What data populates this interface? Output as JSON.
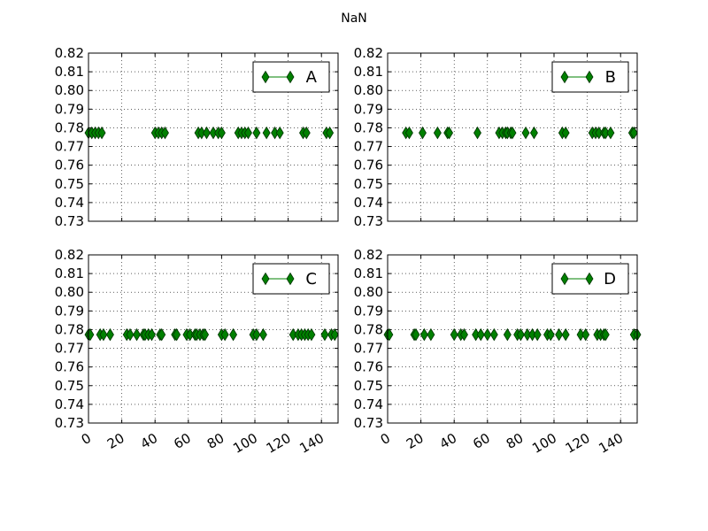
{
  "figure": {
    "title": "NaN"
  },
  "colors": {
    "marker_fill": "#008000",
    "marker_edge": "#003300",
    "line": "#008000",
    "axes": "#000000",
    "grid": "#000000",
    "background": "#ffffff"
  },
  "chart_data": [
    {
      "type": "scatter",
      "panel": "top-left",
      "legend": {
        "label": "A",
        "position": "upper-right"
      },
      "xlim": [
        0,
        150
      ],
      "ylim": [
        0.73,
        0.82
      ],
      "xticks": [
        0,
        20,
        40,
        60,
        80,
        100,
        120,
        140
      ],
      "xticks_visible": false,
      "yticks": [
        "0.73",
        "0.74",
        "0.75",
        "0.76",
        "0.77",
        "0.78",
        "0.79",
        "0.80",
        "0.81",
        "0.82"
      ],
      "grid": true,
      "marker": "diamond",
      "series": [
        {
          "x": [
            0,
            2,
            4,
            6,
            8,
            40,
            42,
            44,
            46,
            66,
            68,
            71,
            75,
            78,
            80,
            90,
            92,
            94,
            96,
            101,
            107,
            112,
            115,
            129,
            131,
            143,
            145
          ],
          "y_constant": 0.7773
        }
      ]
    },
    {
      "type": "scatter",
      "panel": "top-right",
      "legend": {
        "label": "B",
        "position": "upper-right"
      },
      "xlim": [
        0,
        150
      ],
      "ylim": [
        0.73,
        0.82
      ],
      "xticks": [
        0,
        20,
        40,
        60,
        80,
        100,
        120,
        140
      ],
      "xticks_visible": false,
      "yticks": [
        "0.73",
        "0.74",
        "0.75",
        "0.76",
        "0.77",
        "0.78",
        "0.79",
        "0.80",
        "0.81",
        "0.82"
      ],
      "grid": true,
      "marker": "diamond",
      "series": [
        {
          "x": [
            11,
            13,
            21,
            30,
            36,
            37,
            54,
            67,
            69,
            71,
            72,
            74,
            75,
            83,
            88,
            105,
            107,
            123,
            125,
            127,
            130,
            131,
            134,
            147,
            148
          ],
          "y_constant": 0.7773
        }
      ]
    },
    {
      "type": "scatter",
      "panel": "bottom-left",
      "legend": {
        "label": "C",
        "position": "upper-right"
      },
      "xlim": [
        0,
        150
      ],
      "ylim": [
        0.73,
        0.82
      ],
      "xticks": [
        "0",
        "20",
        "40",
        "60",
        "80",
        "100",
        "120",
        "140"
      ],
      "xticks_visible": true,
      "yticks": [
        "0.73",
        "0.74",
        "0.75",
        "0.76",
        "0.77",
        "0.78",
        "0.79",
        "0.80",
        "0.81",
        "0.82"
      ],
      "grid": true,
      "marker": "diamond",
      "series": [
        {
          "x": [
            0,
            1,
            7,
            9,
            13,
            23,
            25,
            29,
            33,
            34,
            36,
            38,
            43,
            44,
            52,
            53,
            59,
            61,
            64,
            65,
            67,
            69,
            70,
            80,
            82,
            87,
            99,
            101,
            105,
            123,
            126,
            128,
            130,
            132,
            134,
            142,
            146,
            148
          ],
          "y_constant": 0.7773
        }
      ]
    },
    {
      "type": "scatter",
      "panel": "bottom-right",
      "legend": {
        "label": "D",
        "position": "upper-right"
      },
      "xlim": [
        0,
        150
      ],
      "ylim": [
        0.73,
        0.82
      ],
      "xticks": [
        "0",
        "20",
        "40",
        "60",
        "80",
        "100",
        "120",
        "140"
      ],
      "xticks_visible": true,
      "yticks": [
        "0.73",
        "0.74",
        "0.75",
        "0.76",
        "0.77",
        "0.78",
        "0.79",
        "0.80",
        "0.81",
        "0.82"
      ],
      "grid": true,
      "marker": "diamond",
      "series": [
        {
          "x": [
            0,
            1,
            16,
            17,
            22,
            26,
            40,
            44,
            46,
            53,
            56,
            60,
            64,
            72,
            78,
            80,
            84,
            87,
            90,
            96,
            98,
            103,
            107,
            116,
            119,
            126,
            128,
            130,
            131,
            148,
            150
          ],
          "y_constant": 0.7773
        }
      ]
    }
  ]
}
